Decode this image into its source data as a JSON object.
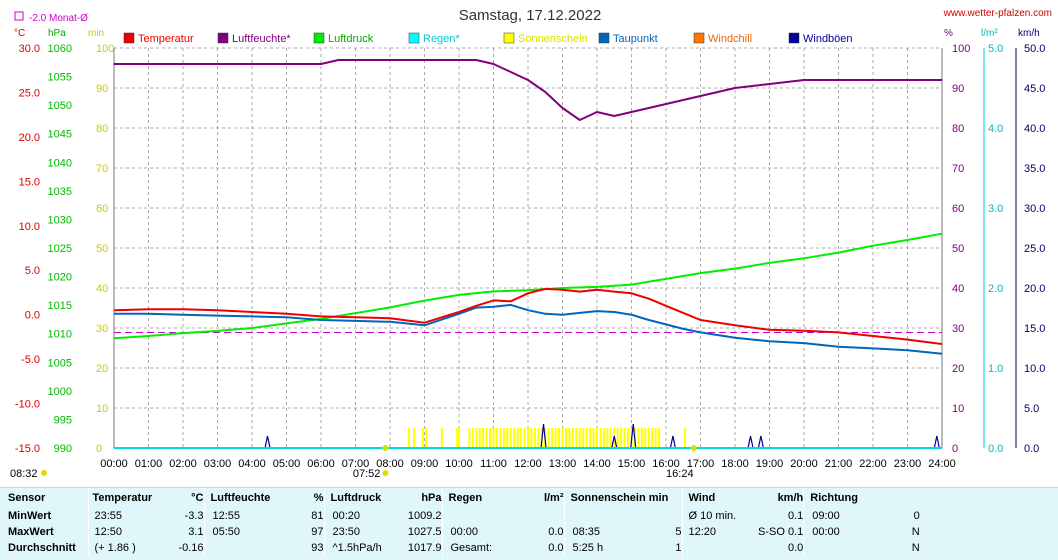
{
  "site_link": "www.wetter-pfalzen.com",
  "chart_data": {
    "type": "line",
    "title": "Samstag, 17.12.2022",
    "x_ticks": [
      "00:00",
      "01:00",
      "02:00",
      "03:00",
      "04:00",
      "05:00",
      "06:00",
      "07:00",
      "08:00",
      "09:00",
      "10:00",
      "11:00",
      "12:00",
      "13:00",
      "14:00",
      "15:00",
      "16:00",
      "17:00",
      "18:00",
      "19:00",
      "20:00",
      "21:00",
      "22:00",
      "23:00",
      "24:00"
    ],
    "month_avg_label": "-2.0 Monat-Ø",
    "month_avg_c": -2.0,
    "sunrise": "07:52",
    "sunset": "16:24",
    "daylength_label": "08:32",
    "axes": {
      "temp_c": {
        "unit": "°C",
        "min": -15,
        "max": 30,
        "ticks": [
          "30.0",
          "25.0",
          "20.0",
          "15.0",
          "10.0",
          "5.0",
          "0.0",
          "-5.0",
          "-10.0",
          "-15.0"
        ]
      },
      "pressure_hpa": {
        "unit": "hPa",
        "min": 990,
        "max": 1060,
        "ticks": [
          "1060",
          "1055",
          "1050",
          "1045",
          "1040",
          "1035",
          "1030",
          "1025",
          "1020",
          "1015",
          "1010",
          "1005",
          "1000",
          "995",
          "990"
        ]
      },
      "sun_min": {
        "unit": "min",
        "min": 0,
        "max": 100,
        "ticks": [
          "100",
          "90",
          "80",
          "70",
          "60",
          "50",
          "40",
          "30",
          "20",
          "10",
          "0"
        ]
      },
      "humidity_pct": {
        "unit": "%",
        "min": 0,
        "max": 100,
        "ticks": [
          "100",
          "90",
          "80",
          "70",
          "60",
          "50",
          "40",
          "30",
          "20",
          "10",
          "0"
        ]
      },
      "rain_lm2": {
        "unit": "l/m²",
        "min": 0,
        "max": 5,
        "ticks": [
          "5.0",
          "4.0",
          "3.0",
          "2.0",
          "1.0",
          "0.0"
        ]
      },
      "wind_kmh": {
        "unit": "km/h",
        "min": 0,
        "max": 50,
        "ticks": [
          "50.0",
          "45.0",
          "40.0",
          "35.0",
          "30.0",
          "25.0",
          "20.0",
          "15.0",
          "10.0",
          "5.0",
          "0.0"
        ]
      }
    },
    "series": [
      {
        "name": "Temperatur",
        "color": "#ee0000",
        "axis": "temp_c",
        "points": [
          [
            0,
            0.5
          ],
          [
            1,
            0.6
          ],
          [
            2,
            0.6
          ],
          [
            3,
            0.5
          ],
          [
            4,
            0.3
          ],
          [
            5,
            0.1
          ],
          [
            6,
            -0.2
          ],
          [
            7,
            -0.3
          ],
          [
            8,
            -0.4
          ],
          [
            9,
            -0.9
          ],
          [
            10,
            0.3
          ],
          [
            10.5,
            1.0
          ],
          [
            11,
            1.6
          ],
          [
            11.5,
            1.5
          ],
          [
            12,
            2.4
          ],
          [
            12.5,
            2.9
          ],
          [
            13,
            2.8
          ],
          [
            13.5,
            2.6
          ],
          [
            14,
            2.8
          ],
          [
            14.5,
            2.6
          ],
          [
            15,
            2.4
          ],
          [
            15.5,
            1.8
          ],
          [
            16,
            1.0
          ],
          [
            16.5,
            0.2
          ],
          [
            17,
            -0.6
          ],
          [
            18,
            -1.2
          ],
          [
            19,
            -1.7
          ],
          [
            20,
            -1.8
          ],
          [
            21,
            -2.0
          ],
          [
            22,
            -2.4
          ],
          [
            23,
            -2.8
          ],
          [
            24,
            -3.3
          ]
        ]
      },
      {
        "name": "Luftfeuchte*",
        "color": "#800080",
        "axis": "humidity_pct",
        "points": [
          [
            0,
            96
          ],
          [
            1,
            96
          ],
          [
            2,
            96
          ],
          [
            3,
            96
          ],
          [
            4,
            96
          ],
          [
            5,
            96
          ],
          [
            6,
            96
          ],
          [
            6.5,
            97
          ],
          [
            7,
            97
          ],
          [
            8,
            97
          ],
          [
            9,
            97
          ],
          [
            10,
            97
          ],
          [
            10.5,
            97
          ],
          [
            11,
            96
          ],
          [
            11.5,
            94
          ],
          [
            12,
            92
          ],
          [
            12.5,
            89
          ],
          [
            13,
            85
          ],
          [
            13.5,
            82
          ],
          [
            14,
            84
          ],
          [
            14.5,
            83
          ],
          [
            15,
            84
          ],
          [
            15.5,
            85
          ],
          [
            16,
            86
          ],
          [
            17,
            88
          ],
          [
            18,
            90
          ],
          [
            19,
            91
          ],
          [
            20,
            92
          ],
          [
            20.5,
            92
          ],
          [
            21,
            92
          ],
          [
            22,
            92
          ],
          [
            23,
            92
          ],
          [
            24,
            92
          ]
        ]
      },
      {
        "name": "Luftdruck",
        "color": "#00ee00",
        "axis": "pressure_hpa",
        "points": [
          [
            0,
            1009.2
          ],
          [
            1,
            1009.6
          ],
          [
            2,
            1010.1
          ],
          [
            3,
            1010.5
          ],
          [
            4,
            1011.0
          ],
          [
            5,
            1011.8
          ],
          [
            6,
            1012.6
          ],
          [
            7,
            1013.6
          ],
          [
            8,
            1014.6
          ],
          [
            9,
            1015.8
          ],
          [
            10,
            1016.8
          ],
          [
            11,
            1017.4
          ],
          [
            12,
            1017.6
          ],
          [
            13,
            1018.0
          ],
          [
            14,
            1018.2
          ],
          [
            15,
            1018.6
          ],
          [
            16,
            1019.6
          ],
          [
            17,
            1020.6
          ],
          [
            18,
            1021.4
          ],
          [
            19,
            1022.4
          ],
          [
            20,
            1023.2
          ],
          [
            21,
            1024.2
          ],
          [
            22,
            1025.4
          ],
          [
            23,
            1026.4
          ],
          [
            24,
            1027.5
          ]
        ]
      },
      {
        "name": "Regen*",
        "color": "#00dddd",
        "axis": "rain_lm2",
        "points": [
          [
            0,
            0
          ],
          [
            24,
            0
          ]
        ]
      },
      {
        "name": "Sonnenschein",
        "color": "#ffff00",
        "axis": "sun_min",
        "points": []
      },
      {
        "name": "Taupunkt",
        "color": "#0066bb",
        "axis": "temp_c",
        "points": [
          [
            0,
            0.1
          ],
          [
            1,
            0.1
          ],
          [
            2,
            0.0
          ],
          [
            3,
            -0.1
          ],
          [
            4,
            -0.2
          ],
          [
            5,
            -0.3
          ],
          [
            6,
            -0.6
          ],
          [
            7,
            -0.7
          ],
          [
            8,
            -0.8
          ],
          [
            9,
            -1.2
          ],
          [
            10,
            0.1
          ],
          [
            10.5,
            0.8
          ],
          [
            11,
            0.9
          ],
          [
            11.5,
            1.1
          ],
          [
            12,
            0.5
          ],
          [
            12.5,
            0.1
          ],
          [
            13,
            0.0
          ],
          [
            13.5,
            0.2
          ],
          [
            14,
            0.4
          ],
          [
            14.5,
            0.3
          ],
          [
            15,
            0.0
          ],
          [
            15.5,
            -0.6
          ],
          [
            16,
            -1.1
          ],
          [
            16.5,
            -1.6
          ],
          [
            17,
            -2.0
          ],
          [
            18,
            -2.6
          ],
          [
            19,
            -3.0
          ],
          [
            20,
            -3.2
          ],
          [
            21,
            -3.6
          ],
          [
            22,
            -3.8
          ],
          [
            23,
            -4.0
          ],
          [
            24,
            -4.4
          ]
        ]
      },
      {
        "name": "Windchill",
        "color": "#ff7700",
        "axis": "temp_c",
        "points": []
      },
      {
        "name": "Windböen",
        "color": "#000099",
        "axis": "wind_kmh",
        "points": []
      }
    ],
    "sunshine_bars_h": [
      8.55,
      8.7,
      8.95,
      9.05,
      9.5,
      9.95,
      10.0,
      10.3,
      10.4,
      10.5,
      10.6,
      10.7,
      10.8,
      10.9,
      11.0,
      11.1,
      11.2,
      11.3,
      11.4,
      11.5,
      11.6,
      11.7,
      11.8,
      11.9,
      12.0,
      12.1,
      12.2,
      12.3,
      12.4,
      12.5,
      12.6,
      12.7,
      12.8,
      12.9,
      13.0,
      13.1,
      13.2,
      13.3,
      13.4,
      13.5,
      13.6,
      13.7,
      13.8,
      13.9,
      14.0,
      14.1,
      14.2,
      14.3,
      14.4,
      14.5,
      14.6,
      14.7,
      14.8,
      14.9,
      15.0,
      15.1,
      15.2,
      15.3,
      15.4,
      15.5,
      15.6,
      15.7,
      15.8,
      16.55
    ],
    "sunshine_bar_min": 5,
    "gust_spikes": [
      [
        4.45,
        1.5
      ],
      [
        12.45,
        3.0
      ],
      [
        14.5,
        1.5
      ],
      [
        15.05,
        3.0
      ],
      [
        16.2,
        1.5
      ],
      [
        18.45,
        1.5
      ],
      [
        18.75,
        1.5
      ],
      [
        23.85,
        1.5
      ]
    ]
  },
  "stats": {
    "header": [
      "Sensor",
      "Temperatur",
      "°C",
      "Luftfeuchte",
      "%",
      "Luftdruck",
      "hPa",
      "Regen",
      "l/m²",
      "Sonnenschein min",
      "Wind",
      "km/h",
      "Richtung"
    ],
    "rows": [
      {
        "sensor": "MinWert",
        "temp_time": "23:55",
        "temp_val": "-3.3",
        "hum_time": "12:55",
        "hum_val": "81",
        "press_time": "00:20",
        "press_val": "1009.2",
        "rain_time": "",
        "rain_val": "",
        "sun_time": "",
        "sun_val": "",
        "wind_time": "Ø 10 min.",
        "wind_val": "0.1",
        "dir_time": "09:00",
        "dir_val": "0"
      },
      {
        "sensor": "MaxWert",
        "temp_time": "12:50",
        "temp_val": "3.1",
        "hum_time": "05:50",
        "hum_val": "97",
        "press_time": "23:50",
        "press_val": "1027.5",
        "rain_time": "00:00",
        "rain_val": "0.0",
        "sun_time": "08:35",
        "sun_val": "5",
        "wind_time": "12:20",
        "wind_val": "S-SO 0.1",
        "dir_time": "00:00",
        "dir_val": "N"
      },
      {
        "sensor": "Durchschnitt",
        "temp_time": "(+ 1.86 )",
        "temp_val": "-0.16",
        "hum_time": "",
        "hum_val": "93",
        "press_time": "^1.5hPa/h",
        "press_val": "1017.9",
        "rain_time": "Gesamt:",
        "rain_val": "0.0",
        "sun_time": "5:25 h",
        "sun_val": "1",
        "wind_time": "",
        "wind_val": "0.0",
        "dir_time": "",
        "dir_val": "N"
      }
    ]
  }
}
